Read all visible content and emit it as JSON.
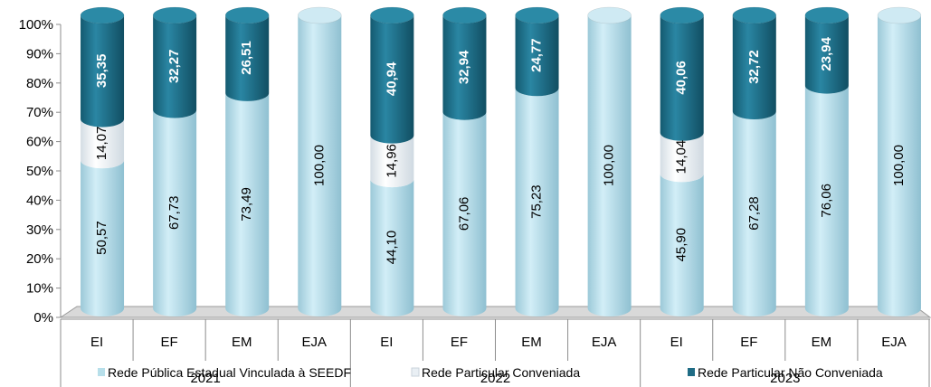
{
  "chart_data": {
    "type": "bar",
    "stacked": true,
    "percent_stacked": true,
    "style": "3d-cylinder",
    "groups": [
      {
        "label": "2021",
        "categories": [
          "EI",
          "EF",
          "EM",
          "EJA"
        ]
      },
      {
        "label": "2022",
        "categories": [
          "EI",
          "EF",
          "EM",
          "EJA"
        ]
      },
      {
        "label": "2023",
        "categories": [
          "EI",
          "EF",
          "EM",
          "EJA"
        ]
      }
    ],
    "series": [
      {
        "name": "Rede Pública Estadual Vinculada à SEEDF",
        "color": "#b7dfea",
        "values": [
          50.57,
          67.73,
          73.49,
          100.0,
          44.1,
          67.06,
          75.23,
          100.0,
          45.9,
          67.28,
          76.06,
          100.0
        ],
        "labels": [
          "50,57",
          "67,73",
          "73,49",
          "100,00",
          "44,10",
          "67,06",
          "75,23",
          "100,00",
          "45,90",
          "67,28",
          "76,06",
          "100,00"
        ]
      },
      {
        "name": "Rede Particular Conveniada",
        "color": "#e9eff4",
        "values": [
          14.07,
          0,
          0,
          0,
          14.96,
          0,
          0,
          0,
          14.04,
          0,
          0,
          0
        ],
        "labels": [
          "14,07",
          "",
          "",
          "",
          "14,96",
          "",
          "",
          "",
          "14,04",
          "",
          "",
          ""
        ]
      },
      {
        "name": "Rede Particular Não Conveniada",
        "color": "#1f6c85",
        "values": [
          35.35,
          32.27,
          26.51,
          0,
          40.94,
          32.94,
          24.77,
          0,
          40.06,
          32.72,
          23.94,
          0
        ],
        "labels": [
          "35,35",
          "32,27",
          "26,51",
          "",
          "40,94",
          "32,94",
          "24,77",
          "",
          "40,06",
          "32,72",
          "23,94",
          ""
        ]
      }
    ],
    "y_ticks": [
      "0%",
      "10%",
      "20%",
      "30%",
      "40%",
      "50%",
      "60%",
      "70%",
      "80%",
      "90%",
      "100%"
    ],
    "ylim": [
      0,
      100
    ],
    "legend_position": "bottom",
    "grid": false
  }
}
